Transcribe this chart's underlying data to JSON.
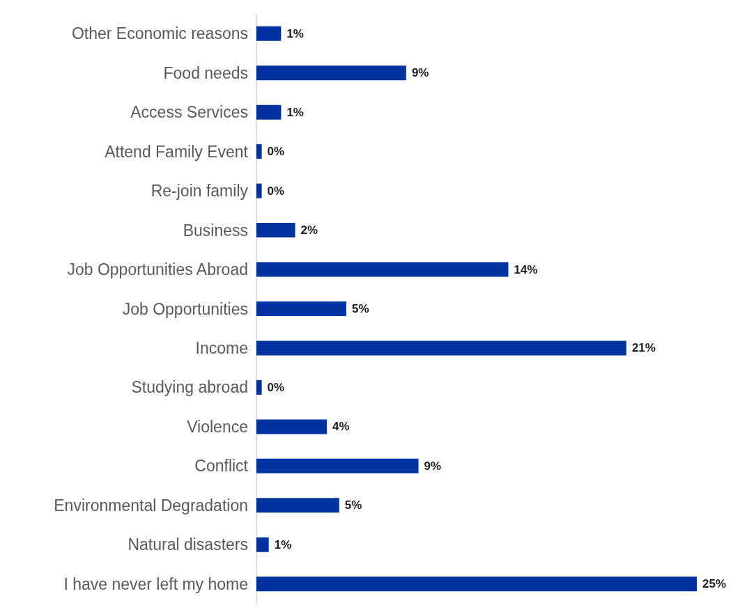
{
  "chart_data": {
    "type": "bar",
    "orientation": "horizontal",
    "categories": [
      "Other Economic reasons",
      "Food needs",
      "Access Services",
      "Attend Family Event",
      "Re-join family",
      "Business",
      "Job Opportunities Abroad",
      "Job Opportunities",
      "Income",
      "Studying abroad",
      "Violence",
      "Conflict",
      "Environmental Degradation",
      "Natural disasters",
      "I have never left my home"
    ],
    "values": [
      1.4,
      8.5,
      1.4,
      0.3,
      0.3,
      2.2,
      14.3,
      5.1,
      21.0,
      0.3,
      4.0,
      9.2,
      4.7,
      0.7,
      25.0
    ],
    "value_labels": [
      "1%",
      "9%",
      "1%",
      "0%",
      "0%",
      "2%",
      "14%",
      "5%",
      "21%",
      "0%",
      "4%",
      "9%",
      "5%",
      "1%",
      "25%"
    ],
    "color": "#0033a0"
  }
}
